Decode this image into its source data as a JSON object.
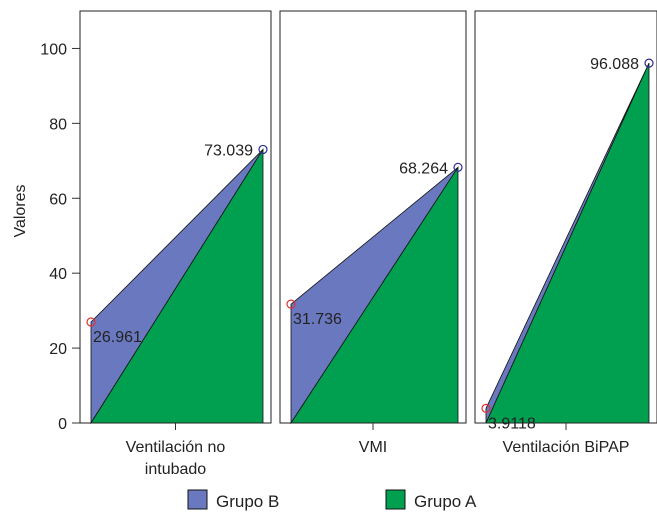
{
  "chart_data": {
    "type": "area",
    "title": "",
    "ylabel": "Valores",
    "ylim": [
      0,
      110
    ],
    "yticks": [
      0,
      20,
      40,
      60,
      80,
      100
    ],
    "grid": false,
    "legend_position": "bottom",
    "panels": [
      {
        "category_lines": [
          "Ventilación no",
          "intubado"
        ],
        "start": 26.961,
        "end": 73.039,
        "start_label": "26.961",
        "end_label": "73.039"
      },
      {
        "category_lines": [
          "VMI"
        ],
        "start": 31.736,
        "end": 68.264,
        "start_label": "31.736",
        "end_label": "68.264"
      },
      {
        "category_lines": [
          "Ventilación BiPAP"
        ],
        "start": 3.9118,
        "end": 96.088,
        "start_label": "3.9118",
        "end_label": "96.088"
      }
    ],
    "series": [
      {
        "name": "Grupo B",
        "color": "#6a79bf"
      },
      {
        "name": "Grupo A",
        "color": "#00a050"
      }
    ],
    "marker_colors": {
      "start": "#e03030",
      "end": "#2a2a90"
    }
  }
}
